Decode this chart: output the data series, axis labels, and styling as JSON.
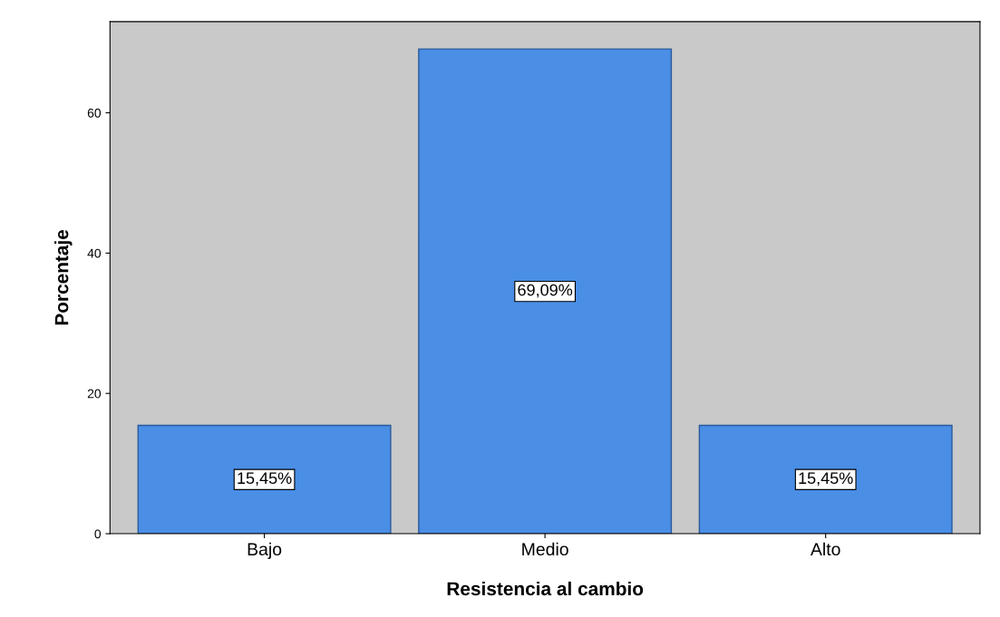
{
  "chart_data": {
    "type": "bar",
    "xlabel": "Resistencia al cambio",
    "ylabel": "Porcentaje",
    "categories": [
      "Bajo",
      "Medio",
      "Alto"
    ],
    "values": [
      15.45,
      69.09,
      15.45
    ],
    "value_labels": [
      "15,45%",
      "69,09%",
      "15,45%"
    ],
    "color": "#4a8ee6",
    "ylim": [
      0,
      73
    ],
    "yticks": [
      0,
      20,
      40,
      60
    ],
    "grid": false,
    "legend": false
  }
}
